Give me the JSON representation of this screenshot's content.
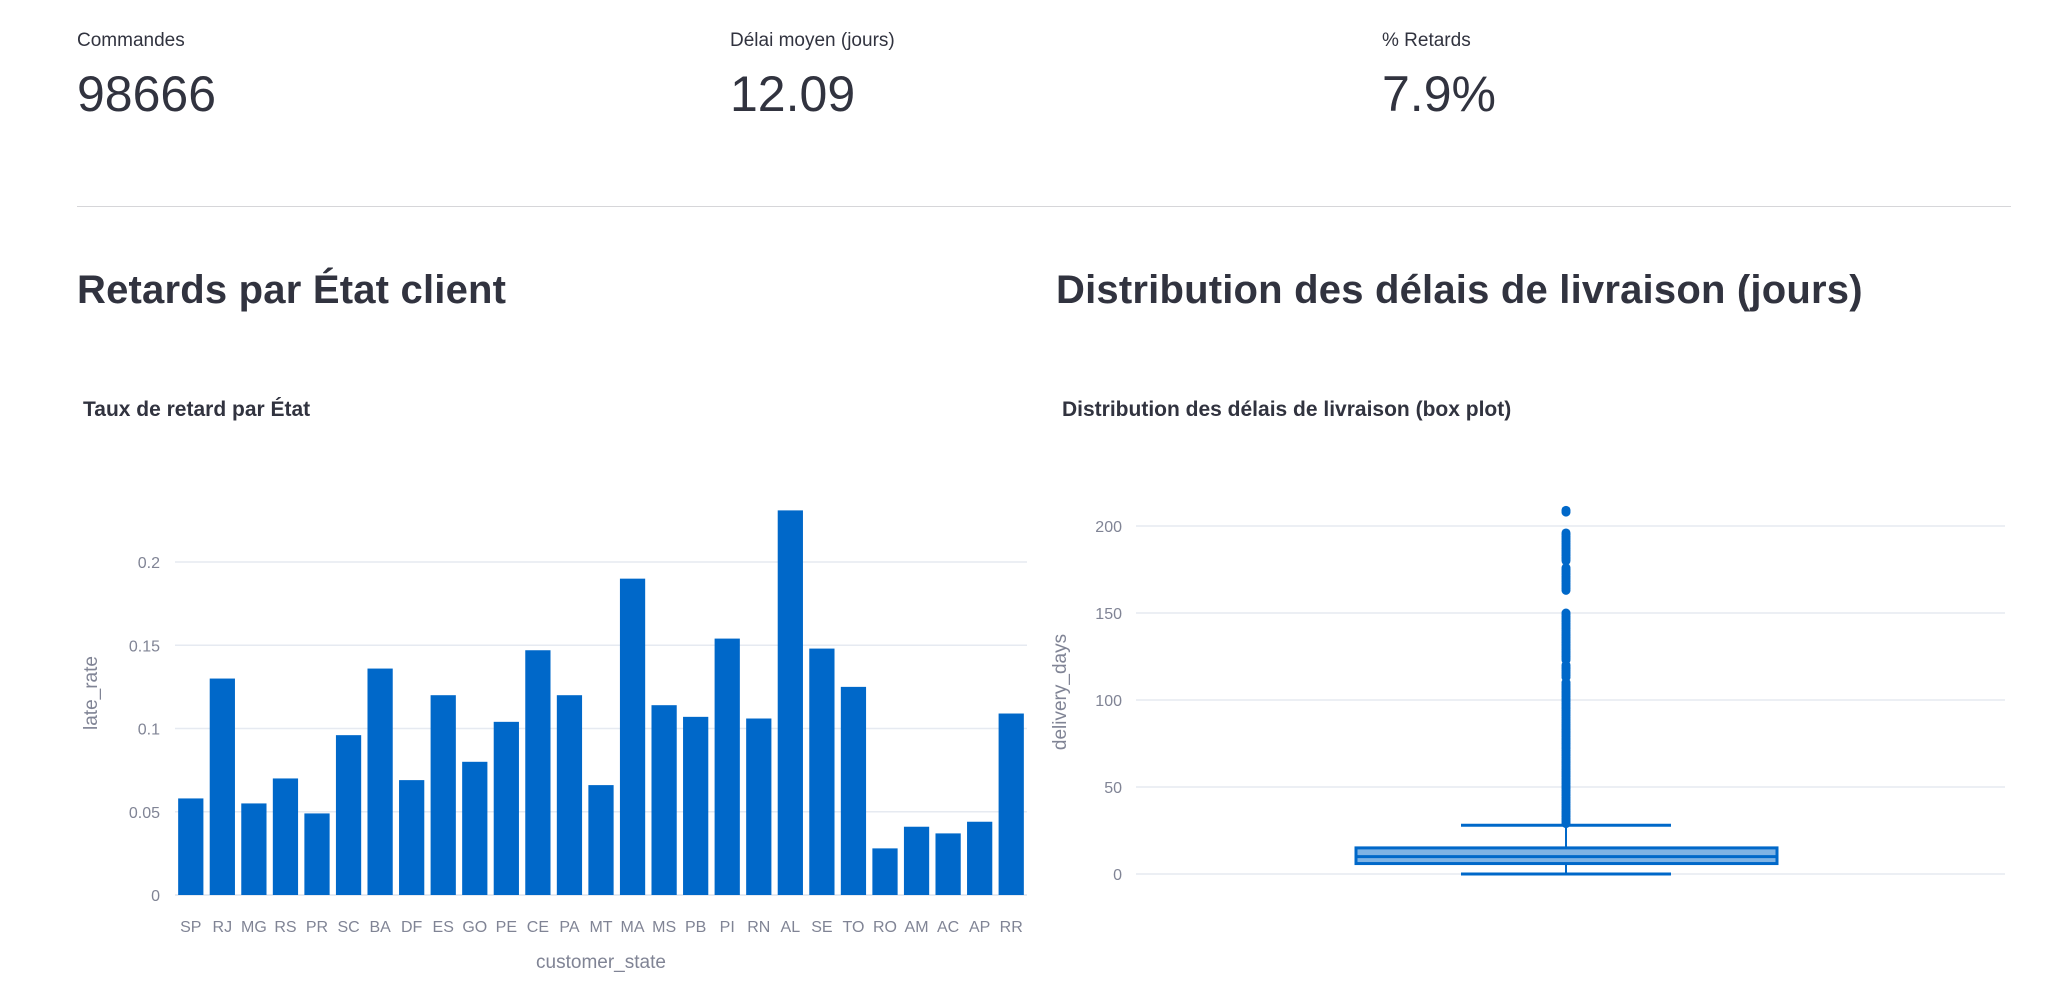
{
  "metrics": [
    {
      "label": "Commandes",
      "value": "98666"
    },
    {
      "label": "Délai moyen (jours)",
      "value": "12.09"
    },
    {
      "label": "% Retards",
      "value": "7.9%"
    }
  ],
  "sections": {
    "left_heading": "Retards par État client",
    "right_heading": "Distribution des délais de livraison (jours)"
  },
  "colors": {
    "bar": "#0068c9",
    "grid": "#e6eaf1",
    "tick": "#808495",
    "text": "#31333f"
  },
  "chart_data": [
    {
      "type": "bar",
      "title": "Taux de retard par État",
      "xlabel": "customer_state",
      "ylabel": "late_rate",
      "ylim": [
        0,
        0.235
      ],
      "yticks": [
        0,
        0.05,
        0.1,
        0.15,
        0.2
      ],
      "ytick_labels": [
        "0",
        "0.05",
        "0.1",
        "0.15",
        "0.2"
      ],
      "grid": true,
      "categories": [
        "SP",
        "RJ",
        "MG",
        "RS",
        "PR",
        "SC",
        "BA",
        "DF",
        "ES",
        "GO",
        "PE",
        "CE",
        "PA",
        "MT",
        "MA",
        "MS",
        "PB",
        "PI",
        "RN",
        "AL",
        "SE",
        "TO",
        "RO",
        "AM",
        "AC",
        "AP",
        "RR"
      ],
      "values": [
        0.058,
        0.13,
        0.055,
        0.07,
        0.049,
        0.096,
        0.136,
        0.069,
        0.12,
        0.08,
        0.104,
        0.147,
        0.12,
        0.066,
        0.19,
        0.114,
        0.107,
        0.154,
        0.106,
        0.231,
        0.148,
        0.125,
        0.028,
        0.041,
        0.037,
        0.044,
        0.109
      ]
    },
    {
      "type": "box",
      "title": "Distribution des délais de livraison (box plot)",
      "ylabel": "delivery_days",
      "ylim": [
        -8,
        215
      ],
      "yticks": [
        0,
        50,
        100,
        150,
        200
      ],
      "ytick_labels": [
        "0",
        "50",
        "100",
        "150",
        "200"
      ],
      "grid": true,
      "box": {
        "min": 0,
        "q1": 6,
        "median": 10,
        "q3": 15,
        "upper_fence": 28
      },
      "outlier_ranges": [
        [
          29,
          110
        ],
        [
          113,
          120
        ],
        [
          123,
          150
        ],
        [
          163,
          176
        ],
        [
          180,
          196
        ],
        [
          208,
          209
        ]
      ]
    }
  ]
}
